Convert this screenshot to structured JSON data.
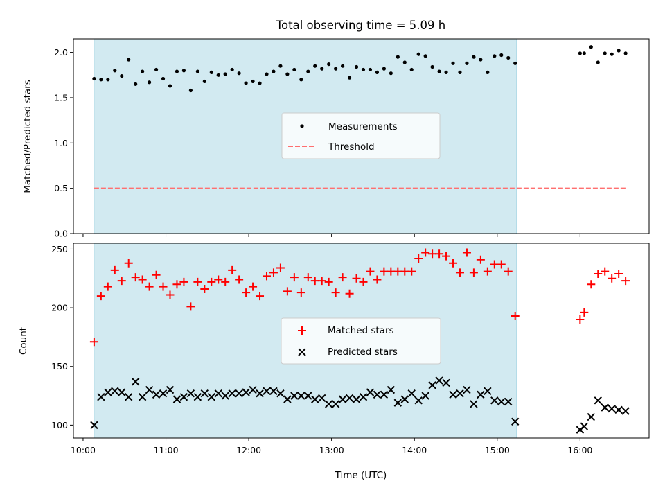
{
  "figure": {
    "title": "Total observing time = 5.09 h",
    "xlabel": "Time (UTC)"
  },
  "colors": {
    "span": "#add8e6",
    "measurement": "#000000",
    "threshold": "#ff6f6f",
    "matched": "#ff0000",
    "predicted": "#000000"
  },
  "chart_data": [
    {
      "type": "scatter",
      "ylabel": "Matched/Predicted stars",
      "xlim": [
        "09:53",
        "16:50"
      ],
      "ylim": [
        0,
        2.15
      ],
      "yticks": [
        "0.0",
        "0.5",
        "1.0",
        "1.5",
        "2.0"
      ],
      "xtick_labels_shown": false,
      "legend": "center",
      "shaded_span": [
        "10:08",
        "15:14"
      ],
      "threshold": {
        "name": "Threshold",
        "y": 0.5,
        "x_range": [
          "10:08",
          "16:33"
        ],
        "style": "dashed"
      },
      "series": [
        {
          "name": "Measurements",
          "x": [
            "10:08",
            "10:13",
            "10:18",
            "10:23",
            "10:28",
            "10:33",
            "10:38",
            "10:43",
            "10:48",
            "10:53",
            "10:58",
            "11:03",
            "11:08",
            "11:13",
            "11:18",
            "11:23",
            "11:28",
            "11:33",
            "11:38",
            "11:43",
            "11:48",
            "11:53",
            "11:58",
            "12:03",
            "12:08",
            "12:13",
            "12:18",
            "12:23",
            "12:28",
            "12:33",
            "12:38",
            "12:43",
            "12:48",
            "12:53",
            "12:58",
            "13:03",
            "13:08",
            "13:13",
            "13:18",
            "13:23",
            "13:28",
            "13:33",
            "13:38",
            "13:43",
            "13:48",
            "13:53",
            "13:58",
            "14:03",
            "14:08",
            "14:13",
            "14:18",
            "14:23",
            "14:28",
            "14:33",
            "14:38",
            "14:43",
            "14:48",
            "14:53",
            "14:58",
            "15:03",
            "15:08",
            "15:13",
            "16:00",
            "16:03",
            "16:08",
            "16:13",
            "16:18",
            "16:23",
            "16:28",
            "16:33"
          ],
          "y": [
            1.71,
            1.7,
            1.7,
            1.8,
            1.74,
            1.92,
            1.65,
            1.79,
            1.67,
            1.81,
            1.71,
            1.63,
            1.79,
            1.8,
            1.58,
            1.79,
            1.68,
            1.78,
            1.75,
            1.76,
            1.81,
            1.77,
            1.66,
            1.68,
            1.66,
            1.76,
            1.79,
            1.85,
            1.76,
            1.81,
            1.7,
            1.79,
            1.85,
            1.82,
            1.87,
            1.82,
            1.85,
            1.72,
            1.84,
            1.81,
            1.81,
            1.78,
            1.82,
            1.77,
            1.95,
            1.89,
            1.81,
            1.98,
            1.96,
            1.84,
            1.79,
            1.78,
            1.88,
            1.78,
            1.88,
            1.95,
            1.92,
            1.78,
            1.96,
            1.97,
            1.94,
            1.88,
            1.99,
            1.99,
            2.06,
            1.89,
            1.99,
            1.98,
            2.02,
            1.99
          ]
        }
      ]
    },
    {
      "type": "scatter",
      "ylabel": "Count",
      "xlabel": "Time (UTC)",
      "xlim": [
        "09:53",
        "16:50"
      ],
      "xticks": [
        "10:00",
        "11:00",
        "12:00",
        "13:00",
        "14:00",
        "15:00",
        "16:00"
      ],
      "ylim": [
        89,
        255
      ],
      "yticks": [
        "100",
        "150",
        "200",
        "250"
      ],
      "legend": "center",
      "shaded_span": [
        "10:08",
        "15:14"
      ],
      "series": [
        {
          "name": "Matched stars",
          "marker": "+",
          "x": [
            "10:08",
            "10:13",
            "10:18",
            "10:23",
            "10:28",
            "10:33",
            "10:38",
            "10:43",
            "10:48",
            "10:53",
            "10:58",
            "11:03",
            "11:08",
            "11:13",
            "11:18",
            "11:23",
            "11:28",
            "11:33",
            "11:38",
            "11:43",
            "11:48",
            "11:53",
            "11:58",
            "12:03",
            "12:08",
            "12:13",
            "12:18",
            "12:23",
            "12:28",
            "12:33",
            "12:38",
            "12:43",
            "12:48",
            "12:53",
            "12:58",
            "13:03",
            "13:08",
            "13:13",
            "13:18",
            "13:23",
            "13:28",
            "13:33",
            "13:38",
            "13:43",
            "13:48",
            "13:53",
            "13:58",
            "14:03",
            "14:08",
            "14:13",
            "14:18",
            "14:23",
            "14:28",
            "14:33",
            "14:38",
            "14:43",
            "14:48",
            "14:53",
            "14:58",
            "15:03",
            "15:08",
            "15:13",
            "16:00",
            "16:03",
            "16:08",
            "16:13",
            "16:18",
            "16:23",
            "16:28",
            "16:33"
          ],
          "y": [
            171,
            210,
            218,
            232,
            223,
            238,
            226,
            224,
            218,
            228,
            218,
            211,
            220,
            222,
            201,
            222,
            216,
            222,
            224,
            222,
            232,
            224,
            213,
            218,
            210,
            227,
            230,
            234,
            214,
            226,
            213,
            226,
            223,
            223,
            222,
            213,
            226,
            212,
            225,
            222,
            231,
            224,
            231,
            231,
            231,
            231,
            231,
            242,
            247,
            246,
            246,
            244,
            238,
            230,
            247,
            230,
            241,
            231,
            237,
            237,
            231,
            193,
            190,
            196,
            220,
            229,
            231,
            225,
            229,
            223
          ]
        },
        {
          "name": "Predicted stars",
          "marker": "x",
          "x": [
            "10:08",
            "10:13",
            "10:18",
            "10:23",
            "10:28",
            "10:33",
            "10:38",
            "10:43",
            "10:48",
            "10:53",
            "10:58",
            "11:03",
            "11:08",
            "11:13",
            "11:18",
            "11:23",
            "11:28",
            "11:33",
            "11:38",
            "11:43",
            "11:48",
            "11:53",
            "11:58",
            "12:03",
            "12:08",
            "12:13",
            "12:18",
            "12:23",
            "12:28",
            "12:33",
            "12:38",
            "12:43",
            "12:48",
            "12:53",
            "12:58",
            "13:03",
            "13:08",
            "13:13",
            "13:18",
            "13:23",
            "13:28",
            "13:33",
            "13:38",
            "13:43",
            "13:48",
            "13:53",
            "13:58",
            "14:03",
            "14:08",
            "14:13",
            "14:18",
            "14:23",
            "14:28",
            "14:33",
            "14:38",
            "14:43",
            "14:48",
            "14:53",
            "14:58",
            "15:03",
            "15:08",
            "15:13",
            "16:00",
            "16:03",
            "16:08",
            "16:13",
            "16:18",
            "16:23",
            "16:28",
            "16:33"
          ],
          "y": [
            100,
            124,
            128,
            129,
            128,
            124,
            137,
            124,
            130,
            126,
            127,
            130,
            122,
            124,
            127,
            124,
            127,
            124,
            127,
            125,
            127,
            127,
            128,
            130,
            127,
            129,
            129,
            127,
            122,
            125,
            125,
            125,
            122,
            123,
            118,
            118,
            122,
            123,
            122,
            124,
            128,
            126,
            126,
            130,
            119,
            122,
            127,
            121,
            125,
            134,
            138,
            136,
            126,
            127,
            130,
            118,
            126,
            129,
            121,
            120,
            120,
            103,
            96,
            99,
            107,
            121,
            115,
            114,
            113,
            112
          ]
        }
      ]
    }
  ]
}
